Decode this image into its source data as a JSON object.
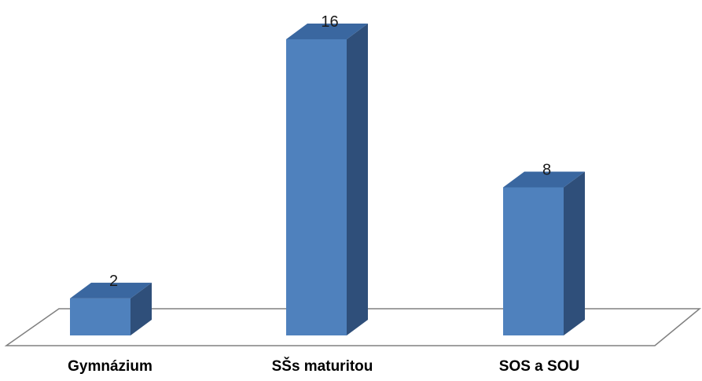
{
  "chart_data": {
    "type": "bar",
    "style": "3d-column",
    "categories": [
      "Gymnázium",
      "SŠs maturitou",
      "SOS a SOU"
    ],
    "values": [
      2,
      16,
      8
    ],
    "data_labels_shown": true,
    "title": "",
    "xlabel": "",
    "ylabel": "",
    "ylim": [
      0,
      16
    ],
    "grid": false,
    "legend": "none",
    "colors": {
      "bar_front": "#4F81BD",
      "bar_side": "#2F4F7A",
      "bar_top": "#3A67A0",
      "floor_stroke": "#808080"
    }
  }
}
